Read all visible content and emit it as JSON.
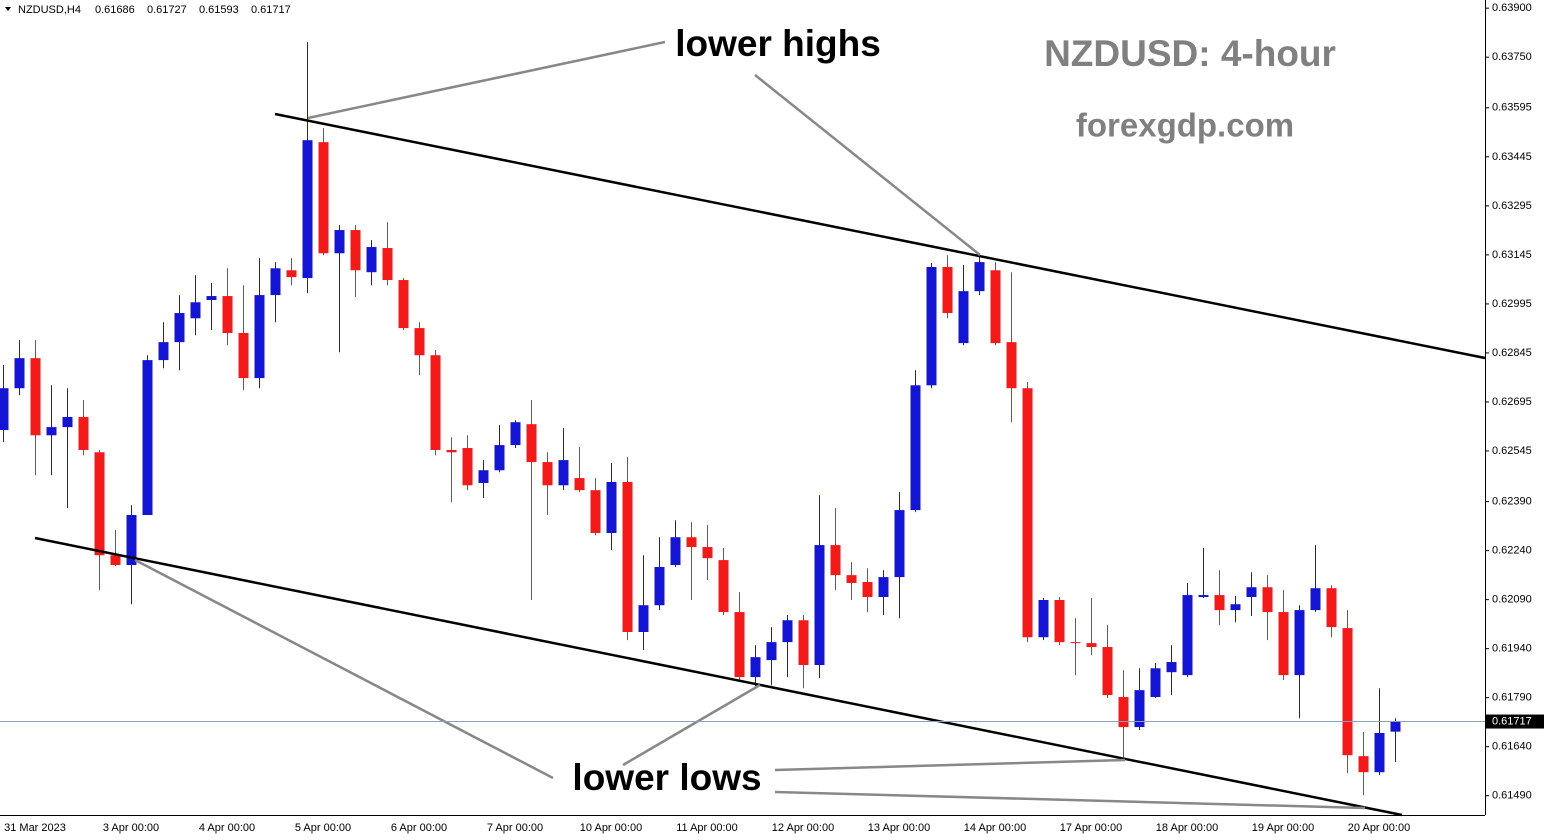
{
  "chart_data": {
    "type": "candlestick",
    "symbol": "NZDUSD,H4",
    "title": "NZDUSD: 4-hour",
    "subtitle": "forexgdp.com",
    "annotations": [
      "lower highs",
      "lower lows"
    ],
    "up_color": "#1414d4",
    "down_color": "#f41a1a",
    "last_price_line_color": "#8fa0b4",
    "categories": [
      null,
      null,
      "31 Mar 2023",
      null,
      null,
      null,
      null,
      null,
      "3 Apr 00:00",
      null,
      null,
      null,
      null,
      null,
      "4 Apr 00:00",
      null,
      null,
      null,
      null,
      null,
      "5 Apr 00:00",
      null,
      null,
      null,
      null,
      null,
      "6 Apr 00:00",
      null,
      null,
      null,
      null,
      null,
      "7 Apr 00:00",
      null,
      null,
      null,
      null,
      null,
      "10 Apr 00:00",
      null,
      null,
      null,
      null,
      null,
      "11 Apr 00:00",
      null,
      null,
      null,
      null,
      null,
      "12 Apr 00:00",
      null,
      null,
      null,
      null,
      null,
      "13 Apr 00:00",
      null,
      null,
      null,
      null,
      null,
      "14 Apr 00:00",
      null,
      null,
      null,
      null,
      null,
      "17 Apr 00:00",
      null,
      null,
      null,
      null,
      null,
      "18 Apr 00:00",
      null,
      null,
      null,
      null,
      null,
      "19 Apr 00:00",
      null,
      null,
      null,
      null,
      null,
      "20 Apr 00:00",
      null
    ],
    "open": [
      0.62609,
      0.62737,
      0.62829,
      0.62593,
      0.62618,
      0.62649,
      0.62541,
      0.62226,
      0.62196,
      0.62349,
      0.62823,
      0.62878,
      0.62951,
      0.63007,
      0.63019,
      0.62906,
      0.62768,
      0.63022,
      0.63098,
      0.63074,
      0.6349,
      0.6315,
      0.63221,
      0.63092,
      0.63166,
      0.63068,
      0.62921,
      0.62838,
      0.62548,
      0.62554,
      0.62447,
      0.62486,
      0.62563,
      0.62627,
      0.62511,
      0.6244,
      0.62462,
      0.62425,
      0.62294,
      0.6245,
      0.61991,
      0.62073,
      0.62196,
      0.62281,
      0.62251,
      0.62211,
      0.62052,
      0.61853,
      0.61905,
      0.6196,
      0.62027,
      0.6189,
      0.62257,
      0.62165,
      0.62144,
      0.62098,
      0.62159,
      0.62364,
      0.62746,
      0.63108,
      0.62875,
      0.63034,
      0.63098,
      0.62878,
      0.62737,
      0.61975,
      0.62089,
      0.6196,
      0.61957,
      0.61945,
      0.61792,
      0.617,
      0.61792,
      0.61868,
      0.61859,
      0.62098,
      0.62104,
      0.62058,
      0.62098,
      0.62128,
      0.62052,
      0.61859,
      0.62058,
      0.62125,
      0.62003,
      0.61611,
      0.61562,
      0.61686
    ],
    "high": [
      0.62808,
      0.62884,
      0.62884,
      0.62746,
      0.62737,
      0.62701,
      0.62548,
      0.62303,
      0.62379,
      0.62838,
      0.62939,
      0.63022,
      0.63083,
      0.63059,
      0.63104,
      0.63052,
      0.63135,
      0.63123,
      0.63135,
      0.63796,
      0.63533,
      0.63236,
      0.63236,
      0.6319,
      0.63245,
      0.63074,
      0.62939,
      0.62854,
      0.62587,
      0.62593,
      0.62517,
      0.62624,
      0.62639,
      0.62701,
      0.62541,
      0.62615,
      0.62557,
      0.62462,
      0.62508,
      0.62526,
      0.62226,
      0.62281,
      0.62333,
      0.62327,
      0.62318,
      0.62248,
      0.62113,
      0.61951,
      0.62006,
      0.62043,
      0.62043,
      0.6241,
      0.6237,
      0.62205,
      0.62186,
      0.6218,
      0.62419,
      0.62792,
      0.6312,
      0.63144,
      0.63114,
      0.63144,
      0.63123,
      0.63092,
      0.62756,
      0.62095,
      0.62098,
      0.62033,
      0.62095,
      0.62012,
      0.61874,
      0.6188,
      0.61896,
      0.61951,
      0.62141,
      0.62248,
      0.6218,
      0.62101,
      0.62174,
      0.62165,
      0.62119,
      0.62073,
      0.62257,
      0.62134,
      0.62058,
      0.61685,
      0.61819,
      0.61727
    ],
    "low": [
      0.62572,
      0.62716,
      0.62471,
      0.62471,
      0.6237,
      0.62532,
      0.62119,
      0.62193,
      0.62076,
      0.62349,
      0.62798,
      0.62792,
      0.62899,
      0.62915,
      0.62869,
      0.62731,
      0.62737,
      0.62939,
      0.63052,
      0.63028,
      0.63144,
      0.62847,
      0.63016,
      0.63052,
      0.63052,
      0.62915,
      0.62777,
      0.62532,
      0.62388,
      0.62425,
      0.62401,
      0.6248,
      0.62554,
      0.62089,
      0.62349,
      0.62425,
      0.62419,
      0.62287,
      0.62242,
      0.61966,
      0.61936,
      0.62058,
      0.6219,
      0.62089,
      0.6215,
      0.62043,
      0.61844,
      0.61825,
      0.61828,
      0.61853,
      0.61819,
      0.6185,
      0.62119,
      0.62089,
      0.62052,
      0.62043,
      0.62033,
      0.62358,
      0.62737,
      0.62951,
      0.62869,
      0.63022,
      0.62869,
      0.62633,
      0.6196,
      0.61966,
      0.61951,
      0.61859,
      0.6192,
      0.61789,
      0.61608,
      0.61691,
      0.61789,
      0.61798,
      0.61853,
      0.62095,
      0.62012,
      0.62021,
      0.6204,
      0.61966,
      0.61844,
      0.61727,
      0.62052,
      0.61975,
      0.61559,
      0.61492,
      0.61553,
      0.61593
    ],
    "close": [
      0.62737,
      0.62829,
      0.62593,
      0.62618,
      0.62649,
      0.62548,
      0.62226,
      0.62196,
      0.62349,
      0.62823,
      0.62878,
      0.62967,
      0.63,
      0.63019,
      0.62906,
      0.62768,
      0.63022,
      0.63104,
      0.63077,
      0.63496,
      0.6315,
      0.63221,
      0.63098,
      0.63169,
      0.63068,
      0.62921,
      0.62838,
      0.62548,
      0.62541,
      0.6244,
      0.62486,
      0.62563,
      0.62633,
      0.62511,
      0.6244,
      0.62517,
      0.62425,
      0.62294,
      0.6245,
      0.61991,
      0.62073,
      0.6219,
      0.62281,
      0.62251,
      0.62217,
      0.62052,
      0.61853,
      0.61914,
      0.6196,
      0.62027,
      0.6189,
      0.62257,
      0.62165,
      0.62141,
      0.62098,
      0.62159,
      0.62364,
      0.62746,
      0.63108,
      0.62967,
      0.63034,
      0.63123,
      0.62875,
      0.62737,
      0.61975,
      0.62089,
      0.6196,
      0.61957,
      0.61945,
      0.61798,
      0.617,
      0.61813,
      0.6188,
      0.61899,
      0.62104,
      0.62104,
      0.62058,
      0.62076,
      0.62128,
      0.62052,
      0.61859,
      0.62058,
      0.62125,
      0.62006,
      0.61614,
      0.61562,
      0.61682,
      0.61717
    ],
    "ylim": [
      0.61431,
      0.63925
    ],
    "yticks": [
      {
        "value": 0.639,
        "label": "0.63900"
      },
      {
        "value": 0.6375,
        "label": "0.63750"
      },
      0.63595,
      0.63445,
      0.63295,
      0.63145,
      0.62995,
      0.62845,
      0.62695,
      0.62545,
      {
        "value": 0.6239,
        "label": "0.62390"
      },
      {
        "value": 0.6224,
        "label": "0.62240"
      },
      {
        "value": 0.6209,
        "label": "0.62090"
      },
      {
        "value": 0.6194,
        "label": "0.61940"
      },
      {
        "value": 0.6179,
        "label": "0.61790"
      },
      {
        "value": 0.6164,
        "label": "0.61640"
      },
      {
        "value": 0.6149,
        "label": "0.61490"
      }
    ]
  }
}
